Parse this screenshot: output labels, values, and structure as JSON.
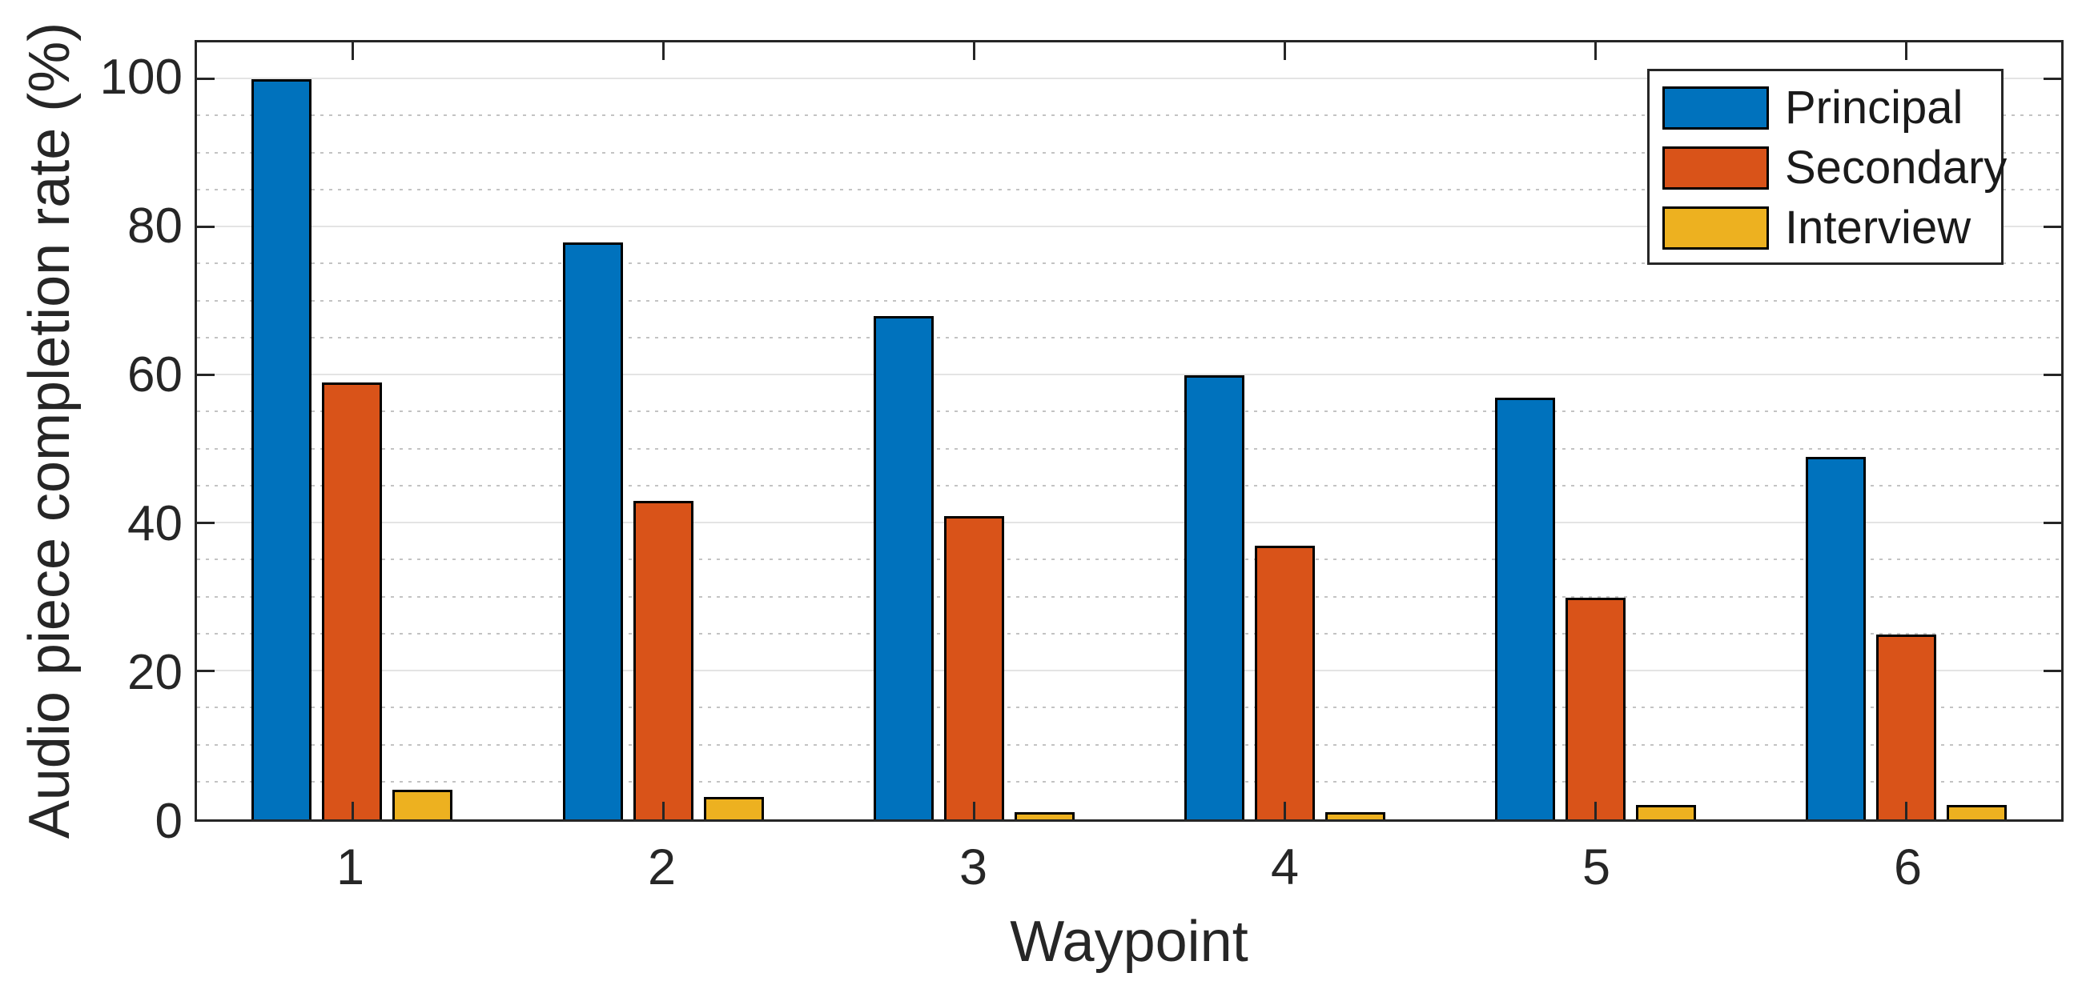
{
  "figure": {
    "background": "#ffffff",
    "axis_color": "#262626",
    "text_color": "#262626",
    "major_grid_color": "#e4e4e4",
    "minor_grid_color": "#c3c3c3",
    "bar_edge_color": "#000000"
  },
  "chart_data": {
    "type": "bar",
    "title": "",
    "xlabel": "Waypoint",
    "ylabel": "Audio piece completion rate (%)",
    "categories": [
      "1",
      "2",
      "3",
      "4",
      "5",
      "6"
    ],
    "series": [
      {
        "name": "Principal",
        "color": "#0072BD",
        "values": [
          100,
          78,
          68,
          60,
          57,
          49
        ]
      },
      {
        "name": "Secondary",
        "color": "#D95319",
        "values": [
          59,
          43,
          41,
          37,
          30,
          25
        ]
      },
      {
        "name": "Interview",
        "color": "#EDB120",
        "values": [
          4,
          3,
          1,
          1,
          2,
          2
        ]
      }
    ],
    "ylim": [
      0,
      105
    ],
    "yticks": [
      0,
      20,
      40,
      60,
      80,
      100
    ],
    "minor_tick_step": 5,
    "grid": "horizontal: major solid, minor dotted",
    "legend_position": "top-right",
    "legend_border": true
  }
}
